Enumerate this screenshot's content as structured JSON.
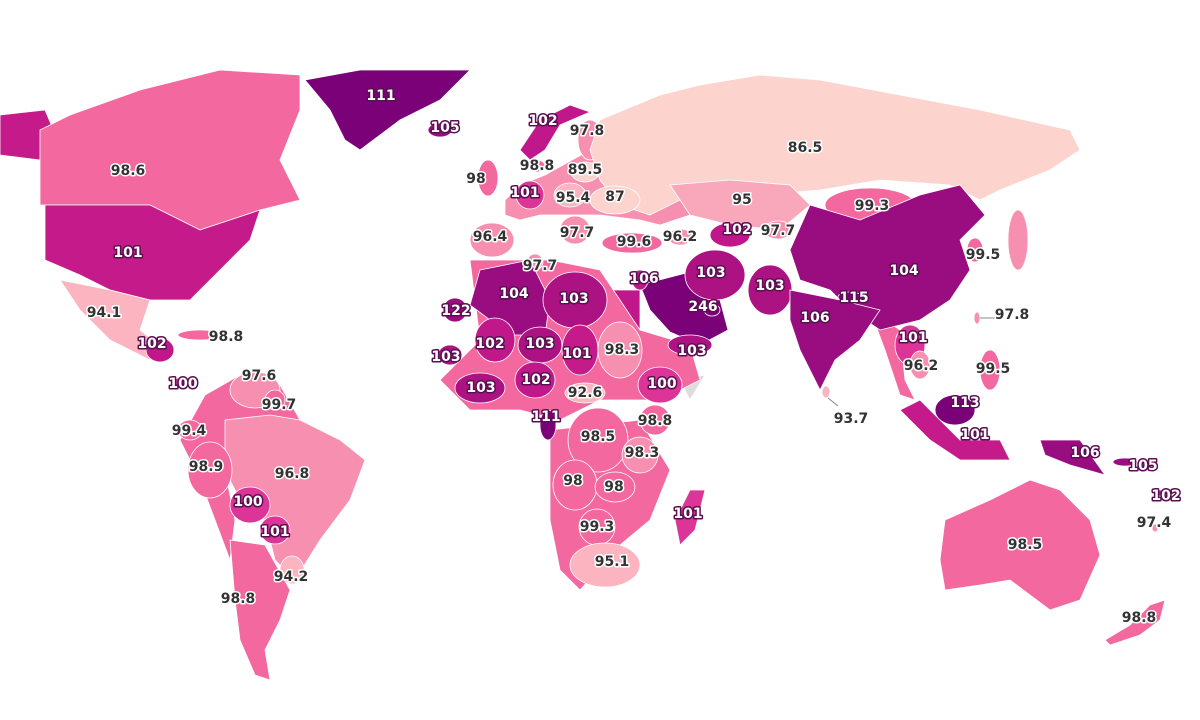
{
  "map": {
    "regions": [
      {
        "value": 111,
        "color": "#7a0177"
      },
      {
        "value": 105,
        "color": "#9a0d80"
      },
      {
        "value": 102,
        "color": "#c0178a"
      },
      {
        "value": 97.8,
        "color": "#f78fb0"
      },
      {
        "value": 86.5,
        "color": "#fdd3cd"
      },
      {
        "value": 98.6,
        "color": "#f2689f"
      },
      {
        "value": 101,
        "color": "#c51b8a"
      },
      {
        "value": 98.8,
        "color": "#f2689f"
      },
      {
        "value": 89.5,
        "color": "#fdd3cd"
      },
      {
        "value": 98,
        "color": "#f2689f"
      },
      {
        "value": 101,
        "color": "#dd3497"
      },
      {
        "value": 95.4,
        "color": "#fbb4c0"
      },
      {
        "value": 87,
        "color": "#fdd3cd"
      },
      {
        "value": 95,
        "color": "#f9a8bc"
      },
      {
        "value": 99.3,
        "color": "#f2689f"
      },
      {
        "value": 96.4,
        "color": "#f78fb0"
      },
      {
        "value": 97.7,
        "color": "#f78fb0"
      },
      {
        "value": 99.6,
        "color": "#f2689f"
      },
      {
        "value": 96.2,
        "color": "#f78fb0"
      },
      {
        "value": 102,
        "color": "#c0178a"
      },
      {
        "value": 97.7,
        "color": "#f78fb0"
      },
      {
        "value": 104,
        "color": "#9a0d80"
      },
      {
        "value": 99.5,
        "color": "#f2689f"
      },
      {
        "value": 97.7,
        "color": "#f78fb0"
      },
      {
        "value": 104,
        "color": "#9a0d80"
      },
      {
        "value": 103,
        "color": "#ad1283"
      },
      {
        "value": 106,
        "color": "#c0178a"
      },
      {
        "value": 246,
        "color": "#7a0177"
      },
      {
        "value": 103,
        "color": "#ad1283"
      },
      {
        "value": 103,
        "color": "#ad1283"
      },
      {
        "value": 115,
        "color": "#7a0177"
      },
      {
        "value": 106,
        "color": "#9a0d80"
      },
      {
        "value": 103,
        "color": "#ad1283"
      },
      {
        "value": 97.8,
        "color": "#f78fb0"
      },
      {
        "value": 94.1,
        "color": "#fbb4c0"
      },
      {
        "value": 122,
        "color": "#9a0d80"
      },
      {
        "value": 102,
        "color": "#c0178a"
      },
      {
        "value": 98.8,
        "color": "#f2689f"
      },
      {
        "value": 103,
        "color": "#ad1283"
      },
      {
        "value": 102,
        "color": "#c0178a"
      },
      {
        "value": 103,
        "color": "#ad1283"
      },
      {
        "value": 101,
        "color": "#c51b8a"
      },
      {
        "value": 98.3,
        "color": "#f78fb0"
      },
      {
        "value": 101,
        "color": "#dd3497"
      },
      {
        "value": 96.2,
        "color": "#f78fb0"
      },
      {
        "value": 99.5,
        "color": "#f2689f"
      },
      {
        "value": 100,
        "color": "#dd3497"
      },
      {
        "value": 97.6,
        "color": "#f78fb0"
      },
      {
        "value": 99.7,
        "color": "#f2689f"
      },
      {
        "value": 103,
        "color": "#ad1283"
      },
      {
        "value": 102,
        "color": "#c0178a"
      },
      {
        "value": 92.6,
        "color": "#fbb4c0"
      },
      {
        "value": 100,
        "color": "#dd3497"
      },
      {
        "value": 111,
        "color": "#7a0177"
      },
      {
        "value": 93.7,
        "color": "#fbb4c0"
      },
      {
        "value": 113,
        "color": "#7a0177"
      },
      {
        "value": 99.4,
        "color": "#f2689f"
      },
      {
        "value": 98.5,
        "color": "#f2689f"
      },
      {
        "value": 98.8,
        "color": "#f2689f"
      },
      {
        "value": 101,
        "color": "#c51b8a"
      },
      {
        "value": 106,
        "color": "#9a0d80"
      },
      {
        "value": 105,
        "color": "#9a0d80"
      },
      {
        "value": 96.8,
        "color": "#f78fb0"
      },
      {
        "value": 98.9,
        "color": "#f2689f"
      },
      {
        "value": 98.3,
        "color": "#f78fb0"
      },
      {
        "value": 100,
        "color": "#dd3497"
      },
      {
        "value": 98,
        "color": "#f2689f"
      },
      {
        "value": 98,
        "color": "#f2689f"
      },
      {
        "value": 102,
        "color": "#c0178a"
      },
      {
        "value": 101,
        "color": "#dd3497"
      },
      {
        "value": 101,
        "color": "#dd3497"
      },
      {
        "value": 99.3,
        "color": "#f2689f"
      },
      {
        "value": 97.4,
        "color": "#f78fb0"
      },
      {
        "value": 98.5,
        "color": "#f2689f"
      },
      {
        "value": 95.1,
        "color": "#fbb4c0"
      },
      {
        "value": 94.2,
        "color": "#fbb4c0"
      },
      {
        "value": 98.8,
        "color": "#f2689f"
      },
      {
        "value": 98.8,
        "color": "#f2689f"
      }
    ]
  }
}
